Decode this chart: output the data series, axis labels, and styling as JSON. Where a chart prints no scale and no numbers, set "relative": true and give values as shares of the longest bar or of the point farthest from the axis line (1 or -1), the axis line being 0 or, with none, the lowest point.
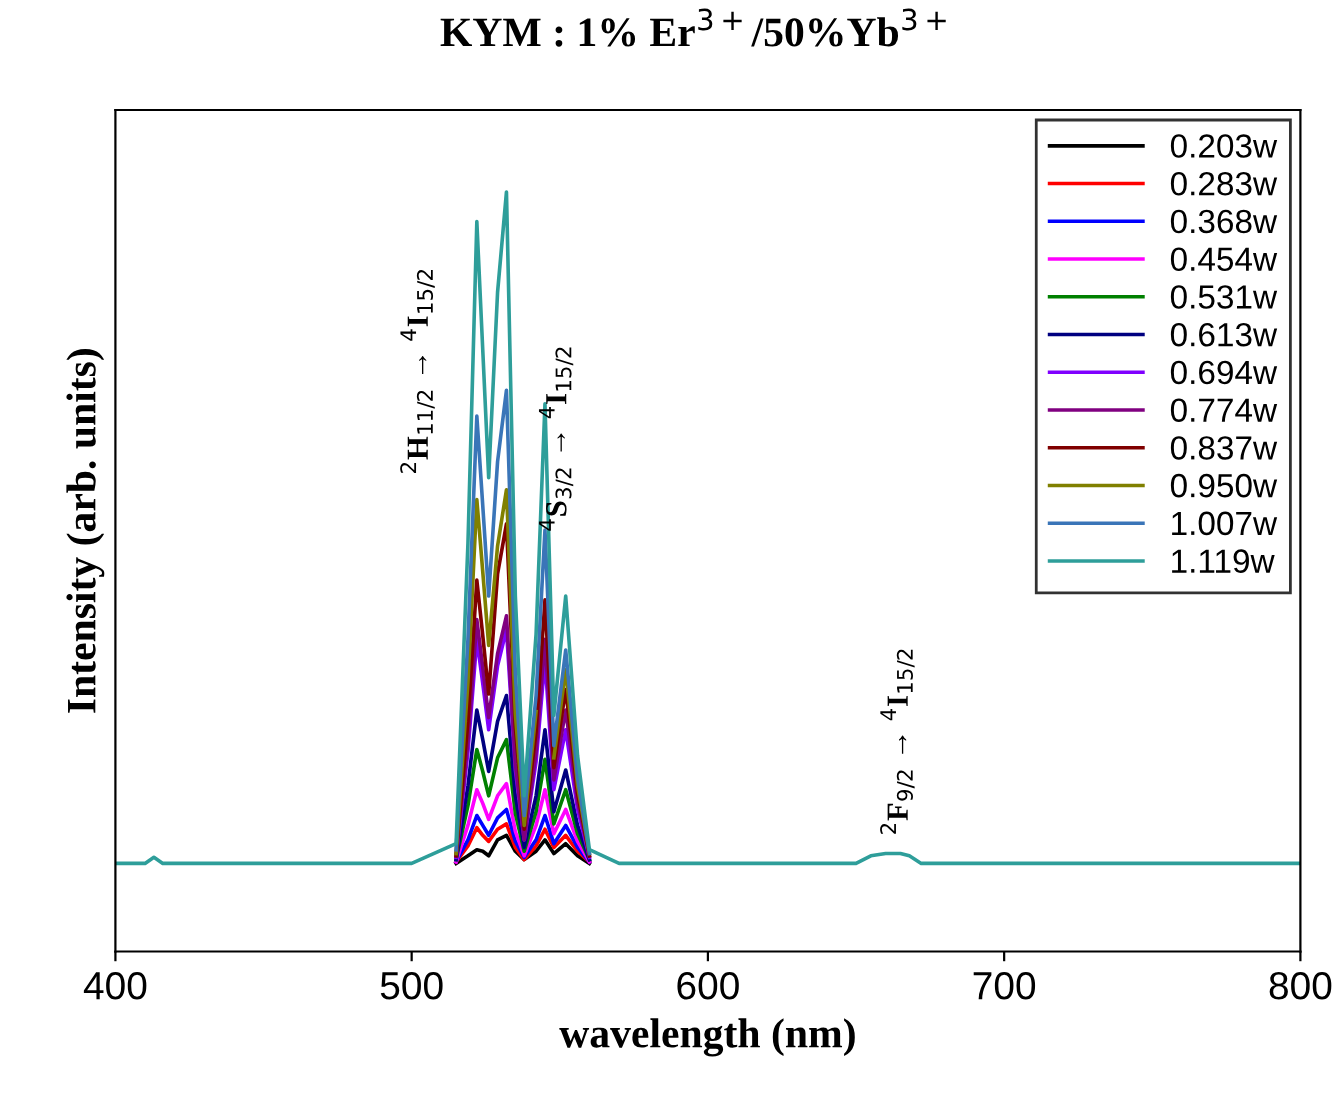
{
  "chart_data": {
    "type": "line",
    "title": "KYM : 1% Er$^{3+}$/50%Yb$^{3+}$",
    "xlabel": "wavelength (nm)",
    "ylabel": "Intensity (arb. units)",
    "relative": true,
    "xlim": [
      400,
      800
    ],
    "xticks": [
      400,
      500,
      600,
      700,
      800
    ],
    "tick_labels": "x",
    "grid": false,
    "legend": "top right",
    "marker": "none",
    "line_style": "solid",
    "x": [
      400,
      410,
      413,
      416,
      500,
      515,
      519,
      522,
      524,
      526,
      529,
      532,
      535,
      538,
      542,
      545,
      548,
      552,
      556,
      560,
      570,
      650,
      655,
      660,
      665,
      668,
      672,
      800
    ],
    "annotations": [
      "$^{2}$H$_{11/2}$ → $^{4}$I$_{15/2}$",
      "$^{4}$S$_{3/2}$ → $^{4}$I$_{15/2}$",
      "$^{2}$F$_{9/2}$ → $^{4}$I$_{15/2}$"
    ],
    "series": [
      {
        "name": "0.203w",
        "color": "#000000",
        "values": [
          null,
          null,
          null,
          null,
          null,
          0.116,
          0.126,
          0.134,
          0.132,
          0.126,
          0.147,
          0.153,
          0.132,
          0.121,
          0.132,
          0.147,
          0.129,
          0.142,
          0.126,
          0.116,
          null,
          null,
          null,
          null,
          null,
          null,
          null,
          null
        ]
      },
      {
        "name": "0.283w",
        "color": "#ff0000",
        "values": [
          null,
          null,
          null,
          null,
          null,
          0.118,
          0.139,
          0.163,
          0.153,
          0.145,
          0.161,
          0.168,
          0.137,
          0.121,
          0.139,
          0.161,
          0.137,
          0.153,
          0.132,
          0.118,
          null,
          null,
          null,
          null,
          null,
          null,
          null,
          null
        ]
      },
      {
        "name": "0.368w",
        "color": "#0000ff",
        "values": [
          null,
          null,
          null,
          null,
          null,
          0.118,
          0.147,
          0.179,
          0.166,
          0.153,
          0.176,
          0.187,
          0.145,
          0.124,
          0.147,
          0.179,
          0.142,
          0.166,
          0.137,
          0.118,
          null,
          null,
          null,
          null,
          null,
          null,
          null,
          null
        ]
      },
      {
        "name": "0.454w",
        "color": "#ff00ff",
        "values": [
          null,
          null,
          null,
          null,
          null,
          0.118,
          0.166,
          0.213,
          0.195,
          0.174,
          0.205,
          0.221,
          0.158,
          0.126,
          0.166,
          0.213,
          0.155,
          0.187,
          0.145,
          0.118,
          null,
          null,
          null,
          null,
          null,
          null,
          null,
          null
        ]
      },
      {
        "name": "0.531w",
        "color": "#008000",
        "values": [
          null,
          null,
          null,
          null,
          null,
          0.121,
          0.192,
          0.266,
          0.237,
          0.205,
          0.255,
          0.279,
          0.182,
          0.132,
          0.184,
          0.253,
          0.168,
          0.213,
          0.155,
          0.121,
          null,
          null,
          null,
          null,
          null,
          null,
          null,
          null
        ]
      },
      {
        "name": "0.613w",
        "color": "#000080",
        "values": [
          null,
          null,
          null,
          null,
          null,
          0.121,
          0.218,
          0.318,
          0.279,
          0.237,
          0.303,
          0.337,
          0.205,
          0.137,
          0.205,
          0.292,
          0.184,
          0.239,
          0.166,
          0.121,
          null,
          null,
          null,
          null,
          null,
          null,
          null,
          null
        ]
      },
      {
        "name": "0.694w",
        "color": "#8000ff",
        "values": [
          null,
          null,
          null,
          null,
          null,
          0.124,
          0.263,
          0.411,
          0.353,
          0.292,
          0.376,
          0.424,
          0.239,
          0.147,
          0.25,
          0.384,
          0.213,
          0.292,
          0.187,
          0.124,
          null,
          null,
          null,
          null,
          null,
          null,
          null,
          null
        ]
      },
      {
        "name": "0.774w",
        "color": "#800080",
        "values": [
          null,
          null,
          null,
          null,
          null,
          0.126,
          0.276,
          0.437,
          0.374,
          0.308,
          0.392,
          0.442,
          0.247,
          0.147,
          0.263,
          0.411,
          0.226,
          0.318,
          0.197,
          0.126,
          null,
          null,
          null,
          null,
          null,
          null,
          null,
          null
        ]
      },
      {
        "name": "0.837w",
        "color": "#800000",
        "values": [
          null,
          null,
          null,
          null,
          null,
          0.126,
          0.303,
          0.489,
          0.416,
          0.339,
          0.497,
          0.563,
          0.295,
          0.161,
          0.289,
          0.463,
          0.242,
          0.345,
          0.208,
          0.126,
          null,
          null,
          null,
          null,
          null,
          null,
          null,
          null
        ]
      },
      {
        "name": "0.950w",
        "color": "#808000",
        "values": [
          null,
          null,
          null,
          null,
          null,
          0.129,
          0.355,
          0.595,
          0.5,
          0.403,
          0.534,
          0.608,
          0.313,
          0.166,
          0.316,
          null,
          0.255,
          0.371,
          0.218,
          0.129,
          null,
          null,
          null,
          null,
          null,
          null,
          null,
          null
        ]
      },
      {
        "name": "1.007w",
        "color": "#3a75b8",
        "values": [
          null,
          null,
          null,
          null,
          null,
          0.134,
          0.411,
          0.705,
          0.587,
          0.468,
          0.645,
          0.739,
          0.366,
          0.179,
          0.337,
          0.555,
          0.271,
          0.397,
          0.229,
          0.129,
          null,
          null,
          null,
          null,
          null,
          null,
          null,
          null
        ]
      },
      {
        "name": "1.119w",
        "color": "#2e9e9a",
        "values": [
          0.116,
          0.116,
          0.124,
          0.116,
          0.116,
          0.142,
          0.537,
          0.961,
          0.792,
          0.624,
          0.868,
          1.0,
          0.468,
          0.205,
          0.418,
          0.721,
          0.311,
          0.468,
          0.258,
          0.134,
          0.116,
          0.116,
          0.126,
          0.129,
          0.129,
          0.126,
          0.116,
          0.116
        ]
      }
    ]
  }
}
